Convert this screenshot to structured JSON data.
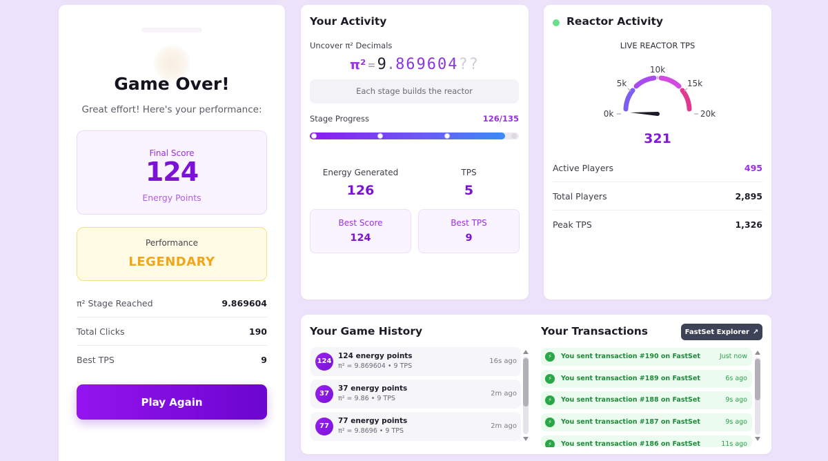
{
  "game_over": {
    "title": "Game Over!",
    "subtitle": "Great effort! Here's your performance:",
    "final_score_label": "Final Score",
    "final_score_value": "124",
    "final_score_unit": "Energy Points",
    "performance_label": "Performance",
    "performance_value": "LEGENDARY",
    "stats": [
      {
        "label": "π² Stage Reached",
        "value": "9.869604"
      },
      {
        "label": "Total Clicks",
        "value": "190"
      },
      {
        "label": "Best TPS",
        "value": "9"
      }
    ],
    "play_again_label": "Play Again"
  },
  "activity": {
    "title": "Your Activity",
    "uncover_label": "Uncover π² Decimals",
    "pi_symbol": "π²",
    "pi_equals": "=",
    "pi_integer": "9",
    "pi_dot": ".",
    "pi_decimals": "869604",
    "pi_unknown": "??",
    "hint": "Each stage builds the reactor",
    "stage_progress_label": "Stage Progress",
    "stage_progress_value": "126/135",
    "stage_progress_fraction": 0.933,
    "energy_generated_label": "Energy Generated",
    "energy_generated_value": "126",
    "tps_label": "TPS",
    "tps_value": "5",
    "best_score_label": "Best Score",
    "best_score_value": "124",
    "best_tps_label": "Best TPS",
    "best_tps_value": "9"
  },
  "reactor": {
    "title": "Reactor Activity",
    "live_label": "LIVE REACTOR TPS",
    "gauge_ticks": [
      "0k",
      "5k",
      "10k",
      "15k",
      "20k"
    ],
    "gauge_max": 20000,
    "current_tps": "321",
    "rows": [
      {
        "label": "Active Players",
        "value": "495"
      },
      {
        "label": "Total Players",
        "value": "2,895"
      },
      {
        "label": "Peak TPS",
        "value": "1,326"
      }
    ]
  },
  "history": {
    "title": "Your Game History",
    "items": [
      {
        "badge": "124",
        "points": "124 energy points",
        "detail": "π² = 9.869604 • 9 TPS",
        "ago": "16s ago"
      },
      {
        "badge": "37",
        "points": "37 energy points",
        "detail": "π² = 9.86 • 9 TPS",
        "ago": "2m ago"
      },
      {
        "badge": "77",
        "points": "77 energy points",
        "detail": "π² = 9.8696 • 9 TPS",
        "ago": "2m ago"
      }
    ]
  },
  "transactions": {
    "title": "Your Transactions",
    "explorer_label": "FastSet Explorer",
    "items": [
      {
        "text": "You sent transaction #190 on FastSet",
        "ago": "Just now"
      },
      {
        "text": "You sent transaction #189 on FastSet",
        "ago": "6s ago"
      },
      {
        "text": "You sent transaction #188 on FastSet",
        "ago": "9s ago"
      },
      {
        "text": "You sent transaction #187 on FastSet",
        "ago": "9s ago"
      },
      {
        "text": "You sent transaction #186 on FastSet",
        "ago": "11s ago"
      }
    ]
  },
  "colors": {
    "brand_purple": "#7c12d6",
    "legendary_gold": "#f0a61a",
    "tx_green": "#27a844",
    "live_green": "#66e08a",
    "page_background": "#ece3fb"
  },
  "icons": {
    "transaction": "lightning-icon",
    "explorer": "external-link-icon",
    "live": "live-status-dot"
  }
}
